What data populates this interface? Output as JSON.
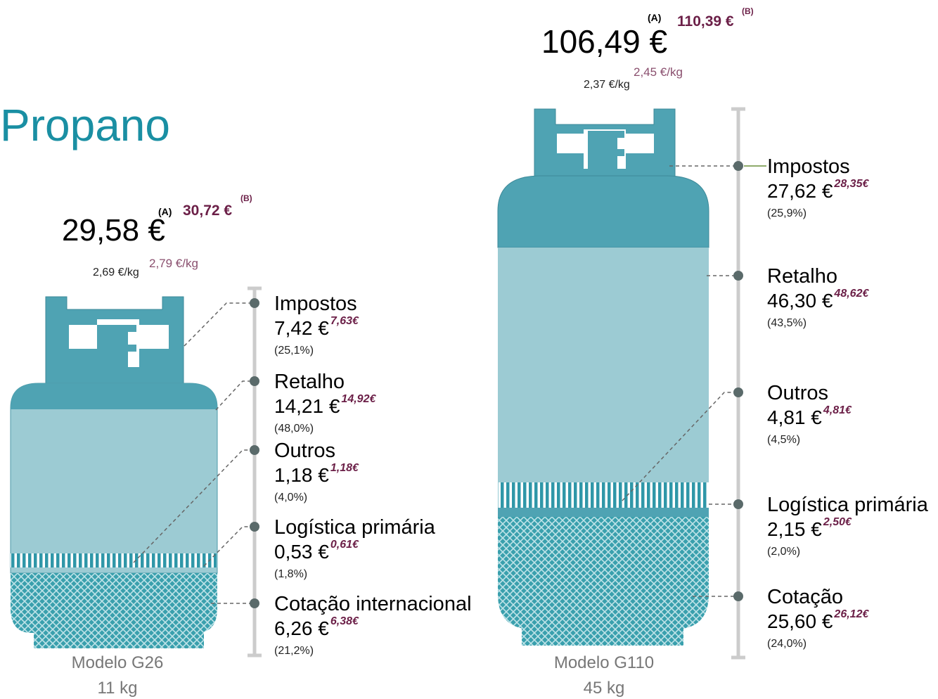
{
  "title": "Propano",
  "cylinders": [
    {
      "price_a": "29,58 €",
      "mark_a": "(A)",
      "price_b": "30,72 €",
      "mark_b": "(B)",
      "per_kg_a": "2,69 €/kg",
      "per_kg_b": "2,79 €/kg",
      "model": "Modelo G26",
      "weight": "11 kg",
      "components": [
        {
          "label": "Impostos",
          "value": "7,42 €",
          "value_b": "7,63€",
          "share": "(25,1%)"
        },
        {
          "label": "Retalho",
          "value": "14,21 €",
          "value_b": "14,92€",
          "share": "(48,0%)"
        },
        {
          "label": "Outros",
          "value": "1,18 €",
          "value_b": "1,18€",
          "share": "(4,0%)"
        },
        {
          "label": "Logística primária",
          "value": "0,53 €",
          "value_b": "0,61€",
          "share": "(1,8%)"
        },
        {
          "label": "Cotação internacional",
          "value": "6,26 €",
          "value_b": "6,38€",
          "share": "(21,2%)"
        }
      ]
    },
    {
      "price_a": "106,49 €",
      "mark_a": "(A)",
      "price_b": "110,39 €",
      "mark_b": "(B)",
      "per_kg_a": "2,37 €/kg",
      "per_kg_b": "2,45 €/kg",
      "model": "Modelo G110",
      "weight": "45 kg",
      "components": [
        {
          "label": "Impostos",
          "value": "27,62 €",
          "value_b": "28,35€",
          "share": "(25,9%)"
        },
        {
          "label": "Retalho",
          "value": "46,30 €",
          "value_b": "48,62€",
          "share": "(43,5%)"
        },
        {
          "label": "Outros",
          "value": "4,81 €",
          "value_b": "4,81€",
          "share": "(4,5%)"
        },
        {
          "label": "Logística primária",
          "value": "2,15 €",
          "value_b": "2,50€",
          "share": "(2,0%)"
        },
        {
          "label": "Cotação",
          "value": "25,60 €",
          "value_b": "26,12€",
          "share": "(24,0%)"
        }
      ]
    }
  ]
}
